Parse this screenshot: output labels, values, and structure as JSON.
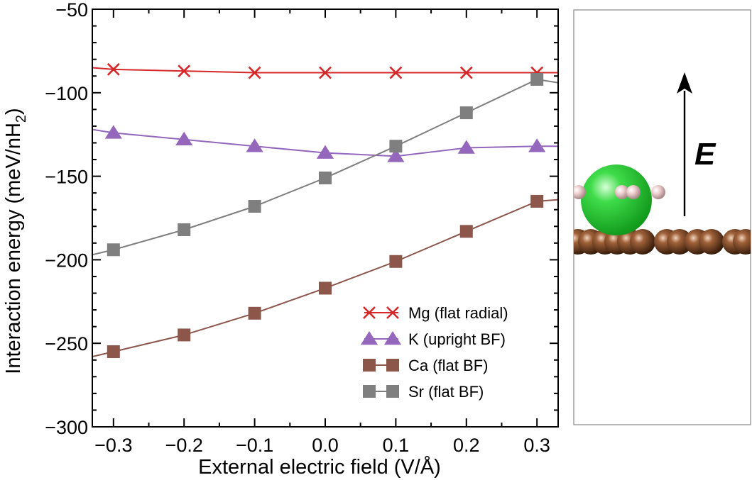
{
  "chart_data": {
    "type": "line",
    "xlabel": "External electric field (V/Å)",
    "ylabel_main": "Interaction energy (meV/nH",
    "ylabel_sub": "2",
    "ylabel_close": ")",
    "xlim": [
      -0.33,
      0.33
    ],
    "ylim": [
      -300,
      -50
    ],
    "x": [
      -0.3,
      -0.2,
      -0.1,
      0.0,
      0.1,
      0.2,
      0.3
    ],
    "x_tick_labels": [
      "−0.3",
      "−0.2",
      "−0.1",
      "0.0",
      "0.1",
      "0.2",
      "0.3"
    ],
    "y_ticks": [
      -300,
      -250,
      -200,
      -150,
      -100,
      -50
    ],
    "y_tick_labels": [
      "−300",
      "−250",
      "−200",
      "−150",
      "−100",
      "−50"
    ],
    "legend_position": "bottom-right",
    "series": [
      {
        "name": "Mg (flat radial)",
        "marker": "x",
        "color": "#d62728",
        "values": [
          -86,
          -87,
          -88,
          -88,
          -88,
          -88,
          -88
        ],
        "edge_left": -85,
        "edge_right": -88
      },
      {
        "name": "K (upright BF)",
        "marker": "triangle",
        "color": "#9467bd",
        "values": [
          -124,
          -128,
          -132,
          -136,
          -138,
          -133,
          -132
        ],
        "edge_left": -122,
        "edge_right": -132
      },
      {
        "name": "Ca (flat BF)",
        "marker": "square",
        "color": "#8c564b",
        "values": [
          -255,
          -245,
          -232,
          -217,
          -201,
          -183,
          -165
        ],
        "edge_left": -258,
        "edge_right": -164
      },
      {
        "name": "Sr (flat BF)",
        "marker": "square",
        "color": "#7f7f7f",
        "values": [
          -194,
          -182,
          -168,
          -151,
          -132,
          -112,
          -92
        ],
        "edge_left": -197,
        "edge_right": -94
      }
    ]
  },
  "structure_panel": {
    "field_label": "E",
    "colors": {
      "surface_atom": "#6b3a1c",
      "metal_atom": "#2ecc40",
      "hydrogen": "#e8c8c8",
      "arrow": "#000000"
    }
  }
}
